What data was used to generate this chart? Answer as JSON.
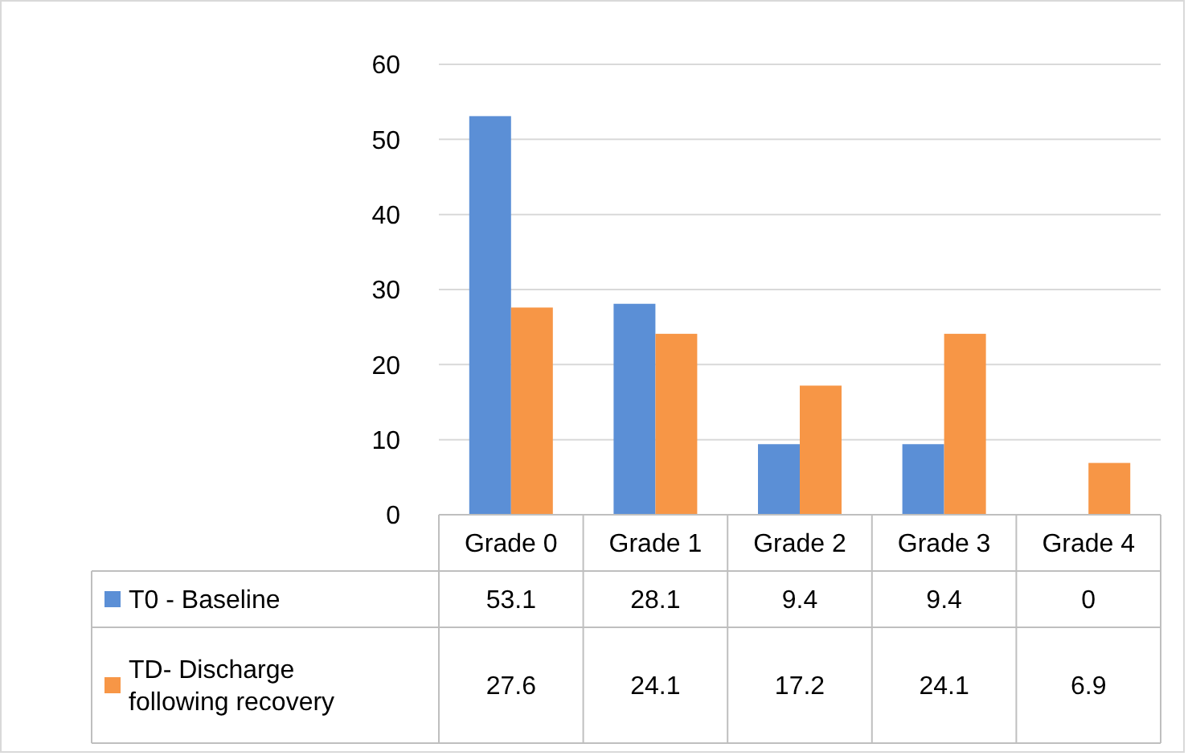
{
  "chart_data": {
    "type": "bar",
    "categories": [
      "Grade 0",
      "Grade 1",
      "Grade 2",
      "Grade 3",
      "Grade 4"
    ],
    "series": [
      {
        "name": "T0 - Baseline",
        "color": "#5b8fd6",
        "values": [
          53.1,
          28.1,
          9.4,
          9.4,
          0
        ]
      },
      {
        "name": "TD- Discharge following recovery",
        "color": "#f79646",
        "values": [
          27.6,
          24.1,
          17.2,
          24.1,
          6.9
        ]
      }
    ],
    "ylim": [
      0,
      60
    ],
    "yticks": [
      0,
      10,
      20,
      30,
      40,
      50,
      60
    ],
    "grid": "y",
    "legend": "bottom left",
    "data_labels": true
  }
}
